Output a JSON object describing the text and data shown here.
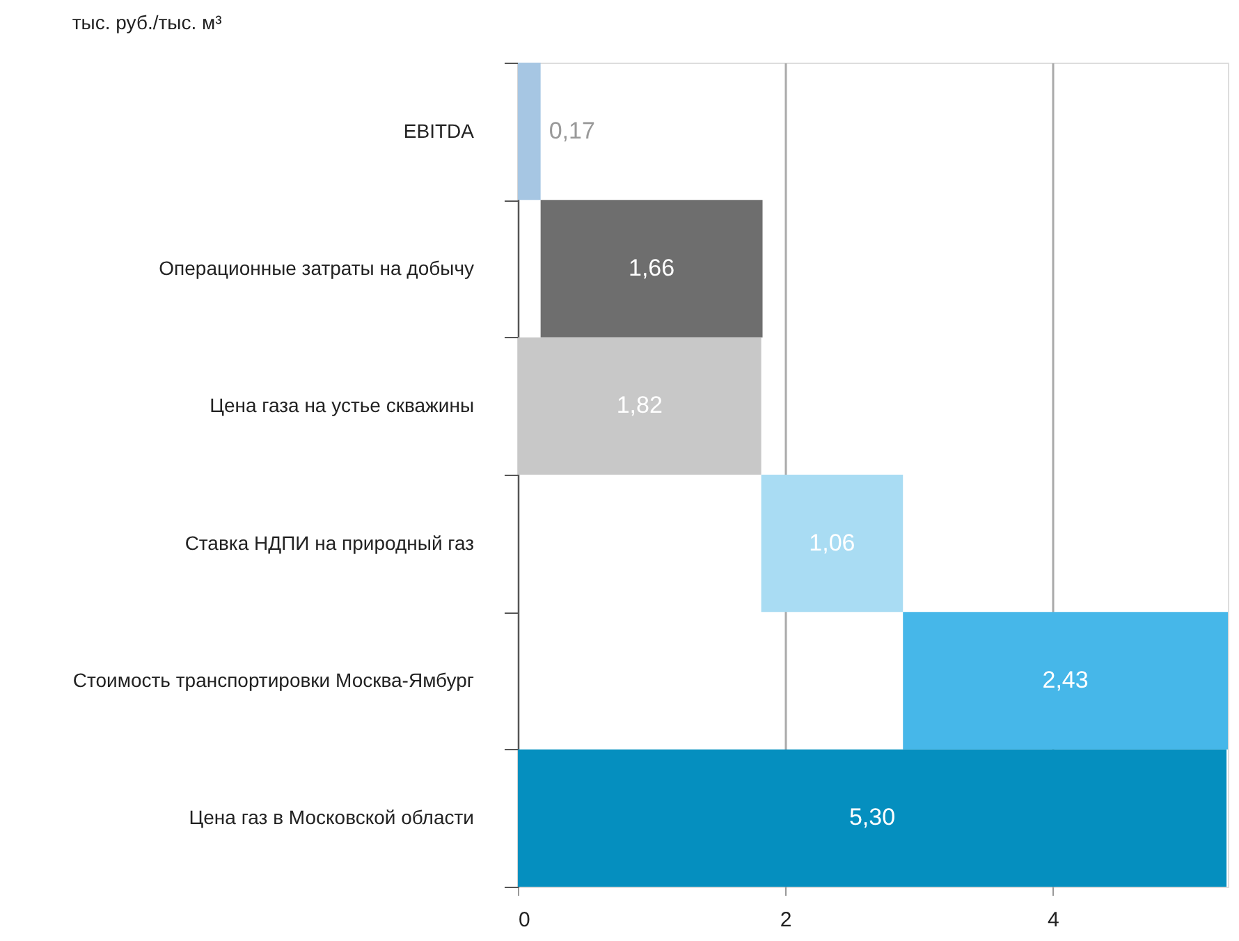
{
  "chart_data": {
    "type": "bar",
    "orientation": "horizontal",
    "title": "тыс. руб./тыс. м³",
    "categories": [
      "EBITDA",
      "Операционные затраты на добычу",
      "Цена газа на устье скважины",
      "Ставка НДПИ на природный газ",
      "Стоимость транспортировки Москва-Ямбург",
      "Цена газ в Московской области"
    ],
    "values": [
      0.17,
      1.66,
      1.82,
      1.06,
      2.43,
      5.3
    ],
    "base": [
      0,
      0.17,
      0,
      1.82,
      2.88,
      0
    ],
    "colors": [
      "#a6c6e3",
      "#6e6e6e",
      "#c8c8c8",
      "#a9dcf3",
      "#46b7e9",
      "#058fbf"
    ],
    "value_labels": [
      "0,17",
      "1,66",
      "1,82",
      "1,06",
      "2,43",
      "5,30"
    ],
    "xlim": [
      0,
      5.31
    ],
    "xticks": [
      0,
      2,
      4
    ],
    "grid": "x"
  }
}
